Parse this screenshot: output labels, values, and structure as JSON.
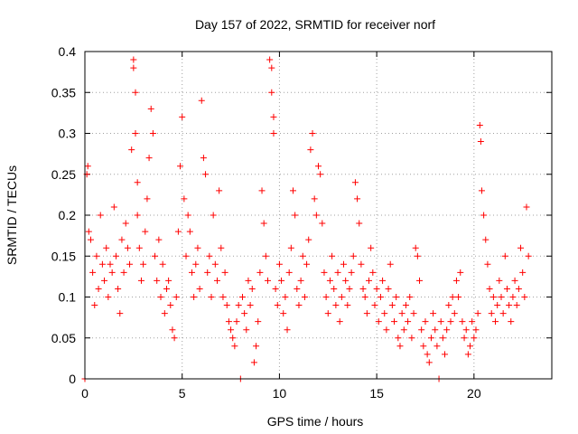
{
  "chart_data": {
    "type": "scatter",
    "title": "Day 157 of 2022, SRMTID for receiver norf",
    "xlabel": "GPS time / hours",
    "ylabel": "SRMTID / TECUs",
    "xlim": [
      0,
      24
    ],
    "ylim": [
      0,
      0.4
    ],
    "x_ticks": [
      {
        "value": 0,
        "label": "0"
      },
      {
        "value": 5,
        "label": "5"
      },
      {
        "value": 10,
        "label": "10"
      },
      {
        "value": 15,
        "label": "15"
      },
      {
        "value": 20,
        "label": "20"
      }
    ],
    "y_ticks": [
      {
        "value": 0,
        "label": "0"
      },
      {
        "value": 0.05,
        "label": "0.05"
      },
      {
        "value": 0.1,
        "label": "0.1"
      },
      {
        "value": 0.15,
        "label": "0.15"
      },
      {
        "value": 0.2,
        "label": "0.2"
      },
      {
        "value": 0.25,
        "label": "0.25"
      },
      {
        "value": 0.3,
        "label": "0.3"
      },
      {
        "value": 0.35,
        "label": "0.35"
      },
      {
        "value": 0.4,
        "label": "0.4"
      }
    ],
    "grid": true,
    "marker": "plus",
    "color": "#ff0000",
    "series": [
      {
        "name": "SRMTID",
        "points": [
          [
            0.0,
            0.0
          ],
          [
            0.1,
            0.25
          ],
          [
            0.15,
            0.26
          ],
          [
            0.2,
            0.18
          ],
          [
            0.3,
            0.17
          ],
          [
            0.4,
            0.13
          ],
          [
            0.5,
            0.09
          ],
          [
            0.6,
            0.15
          ],
          [
            0.7,
            0.11
          ],
          [
            0.8,
            0.2
          ],
          [
            0.9,
            0.14
          ],
          [
            1.0,
            0.12
          ],
          [
            1.1,
            0.16
          ],
          [
            1.2,
            0.1
          ],
          [
            1.3,
            0.14
          ],
          [
            1.4,
            0.13
          ],
          [
            1.5,
            0.21
          ],
          [
            1.6,
            0.15
          ],
          [
            1.7,
            0.11
          ],
          [
            1.8,
            0.08
          ],
          [
            1.9,
            0.17
          ],
          [
            2.0,
            0.13
          ],
          [
            2.1,
            0.19
          ],
          [
            2.2,
            0.16
          ],
          [
            2.3,
            0.14
          ],
          [
            2.4,
            0.28
          ],
          [
            2.5,
            0.39
          ],
          [
            2.5,
            0.38
          ],
          [
            2.6,
            0.35
          ],
          [
            2.6,
            0.3
          ],
          [
            2.7,
            0.24
          ],
          [
            2.7,
            0.2
          ],
          [
            2.8,
            0.16
          ],
          [
            2.9,
            0.12
          ],
          [
            3.0,
            0.14
          ],
          [
            3.1,
            0.18
          ],
          [
            3.2,
            0.22
          ],
          [
            3.3,
            0.27
          ],
          [
            3.4,
            0.33
          ],
          [
            3.5,
            0.3
          ],
          [
            3.6,
            0.15
          ],
          [
            3.7,
            0.12
          ],
          [
            3.8,
            0.17
          ],
          [
            3.9,
            0.1
          ],
          [
            4.0,
            0.14
          ],
          [
            4.1,
            0.08
          ],
          [
            4.2,
            0.11
          ],
          [
            4.3,
            0.12
          ],
          [
            4.4,
            0.09
          ],
          [
            4.5,
            0.06
          ],
          [
            4.6,
            0.05
          ],
          [
            4.7,
            0.1
          ],
          [
            4.8,
            0.18
          ],
          [
            4.9,
            0.26
          ],
          [
            5.0,
            0.32
          ],
          [
            5.1,
            0.22
          ],
          [
            5.2,
            0.15
          ],
          [
            5.3,
            0.2
          ],
          [
            5.4,
            0.18
          ],
          [
            5.5,
            0.13
          ],
          [
            5.6,
            0.1
          ],
          [
            5.7,
            0.14
          ],
          [
            5.8,
            0.16
          ],
          [
            5.9,
            0.11
          ],
          [
            6.0,
            0.34
          ],
          [
            6.1,
            0.27
          ],
          [
            6.2,
            0.25
          ],
          [
            6.3,
            0.13
          ],
          [
            6.4,
            0.15
          ],
          [
            6.5,
            0.1
          ],
          [
            6.6,
            0.2
          ],
          [
            6.7,
            0.14
          ],
          [
            6.8,
            0.12
          ],
          [
            6.9,
            0.23
          ],
          [
            7.0,
            0.16
          ],
          [
            7.1,
            0.1
          ],
          [
            7.2,
            0.13
          ],
          [
            7.3,
            0.09
          ],
          [
            7.4,
            0.07
          ],
          [
            7.5,
            0.06
          ],
          [
            7.6,
            0.05
          ],
          [
            7.7,
            0.04
          ],
          [
            7.8,
            0.07
          ],
          [
            7.9,
            0.09
          ],
          [
            8.0,
            0.0
          ],
          [
            8.1,
            0.1
          ],
          [
            8.2,
            0.08
          ],
          [
            8.3,
            0.06
          ],
          [
            8.4,
            0.12
          ],
          [
            8.5,
            0.09
          ],
          [
            8.6,
            0.11
          ],
          [
            8.7,
            0.02
          ],
          [
            8.8,
            0.04
          ],
          [
            8.9,
            0.07
          ],
          [
            9.0,
            0.13
          ],
          [
            9.1,
            0.23
          ],
          [
            9.2,
            0.19
          ],
          [
            9.3,
            0.15
          ],
          [
            9.4,
            0.12
          ],
          [
            9.5,
            0.39
          ],
          [
            9.6,
            0.38
          ],
          [
            9.6,
            0.35
          ],
          [
            9.7,
            0.32
          ],
          [
            9.7,
            0.3
          ],
          [
            9.8,
            0.11
          ],
          [
            9.9,
            0.09
          ],
          [
            10.0,
            0.14
          ],
          [
            10.1,
            0.12
          ],
          [
            10.2,
            0.08
          ],
          [
            10.3,
            0.1
          ],
          [
            10.4,
            0.06
          ],
          [
            10.5,
            0.13
          ],
          [
            10.6,
            0.16
          ],
          [
            10.7,
            0.23
          ],
          [
            10.8,
            0.2
          ],
          [
            10.9,
            0.11
          ],
          [
            11.0,
            0.09
          ],
          [
            11.1,
            0.12
          ],
          [
            11.2,
            0.15
          ],
          [
            11.3,
            0.1
          ],
          [
            11.4,
            0.14
          ],
          [
            11.5,
            0.17
          ],
          [
            11.6,
            0.28
          ],
          [
            11.7,
            0.3
          ],
          [
            11.8,
            0.22
          ],
          [
            11.9,
            0.2
          ],
          [
            12.0,
            0.26
          ],
          [
            12.1,
            0.25
          ],
          [
            12.2,
            0.19
          ],
          [
            12.3,
            0.13
          ],
          [
            12.4,
            0.1
          ],
          [
            12.5,
            0.08
          ],
          [
            12.6,
            0.12
          ],
          [
            12.7,
            0.15
          ],
          [
            12.8,
            0.11
          ],
          [
            12.9,
            0.09
          ],
          [
            13.0,
            0.13
          ],
          [
            13.1,
            0.07
          ],
          [
            13.2,
            0.1
          ],
          [
            13.3,
            0.14
          ],
          [
            13.4,
            0.12
          ],
          [
            13.5,
            0.09
          ],
          [
            13.6,
            0.11
          ],
          [
            13.7,
            0.13
          ],
          [
            13.8,
            0.15
          ],
          [
            13.9,
            0.24
          ],
          [
            14.0,
            0.22
          ],
          [
            14.1,
            0.19
          ],
          [
            14.2,
            0.14
          ],
          [
            14.3,
            0.11
          ],
          [
            14.4,
            0.1
          ],
          [
            14.5,
            0.08
          ],
          [
            14.6,
            0.12
          ],
          [
            14.7,
            0.16
          ],
          [
            14.8,
            0.13
          ],
          [
            14.9,
            0.09
          ],
          [
            15.0,
            0.11
          ],
          [
            15.1,
            0.07
          ],
          [
            15.2,
            0.1
          ],
          [
            15.3,
            0.12
          ],
          [
            15.4,
            0.08
          ],
          [
            15.5,
            0.06
          ],
          [
            15.6,
            0.11
          ],
          [
            15.7,
            0.14
          ],
          [
            15.8,
            0.09
          ],
          [
            15.9,
            0.07
          ],
          [
            16.0,
            0.1
          ],
          [
            16.1,
            0.05
          ],
          [
            16.2,
            0.04
          ],
          [
            16.3,
            0.08
          ],
          [
            16.4,
            0.06
          ],
          [
            16.5,
            0.09
          ],
          [
            16.6,
            0.07
          ],
          [
            16.7,
            0.1
          ],
          [
            16.8,
            0.05
          ],
          [
            16.9,
            0.08
          ],
          [
            17.0,
            0.16
          ],
          [
            17.1,
            0.15
          ],
          [
            17.2,
            0.12
          ],
          [
            17.3,
            0.06
          ],
          [
            17.4,
            0.04
          ],
          [
            17.5,
            0.07
          ],
          [
            17.6,
            0.03
          ],
          [
            17.7,
            0.02
          ],
          [
            17.8,
            0.05
          ],
          [
            17.9,
            0.08
          ],
          [
            18.0,
            0.06
          ],
          [
            18.1,
            0.04
          ],
          [
            18.2,
            0.0
          ],
          [
            18.3,
            0.07
          ],
          [
            18.4,
            0.05
          ],
          [
            18.5,
            0.03
          ],
          [
            18.6,
            0.06
          ],
          [
            18.7,
            0.09
          ],
          [
            18.8,
            0.07
          ],
          [
            18.9,
            0.1
          ],
          [
            19.0,
            0.08
          ],
          [
            19.1,
            0.12
          ],
          [
            19.2,
            0.1
          ],
          [
            19.3,
            0.13
          ],
          [
            19.4,
            0.07
          ],
          [
            19.5,
            0.05
          ],
          [
            19.6,
            0.06
          ],
          [
            19.7,
            0.03
          ],
          [
            19.8,
            0.04
          ],
          [
            19.9,
            0.07
          ],
          [
            20.0,
            0.05
          ],
          [
            20.1,
            0.06
          ],
          [
            20.2,
            0.08
          ],
          [
            20.3,
            0.31
          ],
          [
            20.35,
            0.29
          ],
          [
            20.4,
            0.23
          ],
          [
            20.5,
            0.2
          ],
          [
            20.6,
            0.17
          ],
          [
            20.7,
            0.14
          ],
          [
            20.8,
            0.11
          ],
          [
            20.9,
            0.08
          ],
          [
            21.0,
            0.1
          ],
          [
            21.1,
            0.07
          ],
          [
            21.2,
            0.09
          ],
          [
            21.3,
            0.12
          ],
          [
            21.4,
            0.1
          ],
          [
            21.5,
            0.08
          ],
          [
            21.6,
            0.15
          ],
          [
            21.7,
            0.11
          ],
          [
            21.8,
            0.09
          ],
          [
            21.9,
            0.07
          ],
          [
            22.0,
            0.1
          ],
          [
            22.1,
            0.12
          ],
          [
            22.2,
            0.09
          ],
          [
            22.3,
            0.11
          ],
          [
            22.4,
            0.16
          ],
          [
            22.5,
            0.13
          ],
          [
            22.6,
            0.1
          ],
          [
            22.7,
            0.21
          ],
          [
            22.8,
            0.15
          ]
        ]
      }
    ]
  }
}
